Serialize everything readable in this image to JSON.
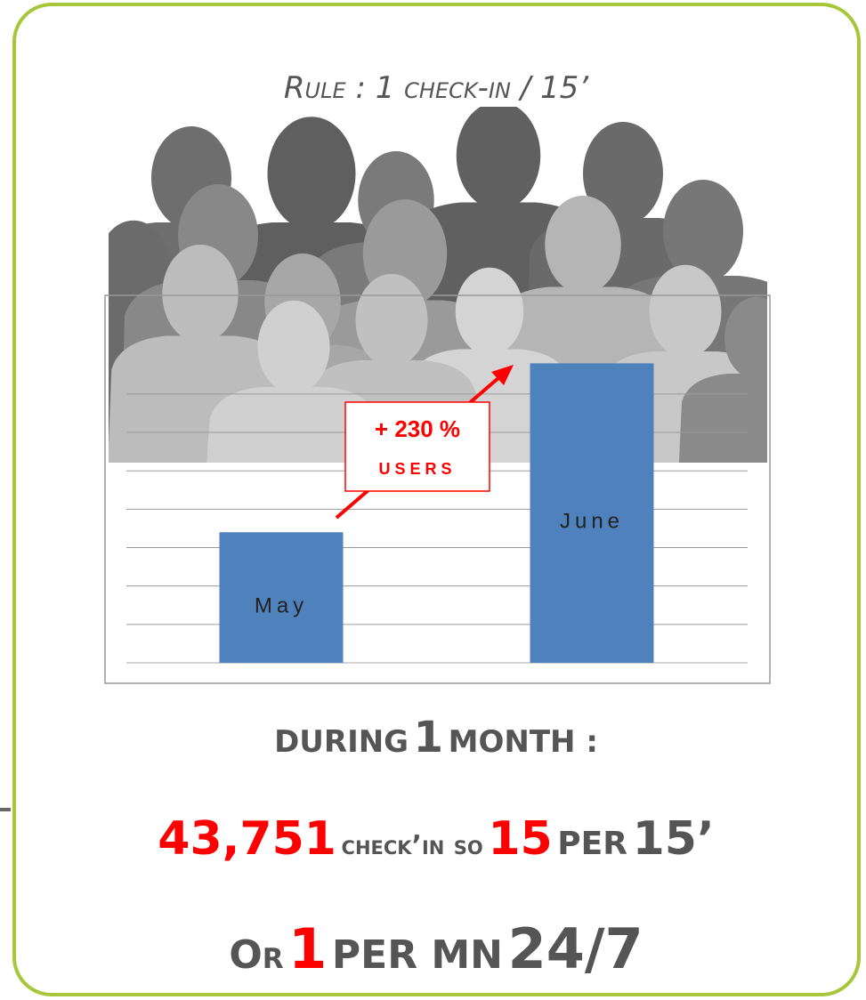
{
  "title": "Rule : 1 check-in / 15’",
  "chart_data": {
    "type": "bar",
    "categories": [
      "May",
      "June"
    ],
    "values": [
      3.4,
      7.8
    ],
    "color": "#4f81bd",
    "ylim": [
      0,
      9.5
    ],
    "grid_lines": [
      1,
      2,
      3,
      4,
      5,
      6,
      7
    ],
    "annotation": [
      "+ 230 %",
      "USERS"
    ],
    "annotation_color": "#ff0000"
  },
  "lines": [
    [
      "DURING",
      "1",
      "MONTH :"
    ],
    [
      "43,751",
      "check’in so",
      "15",
      "PER",
      "15’"
    ],
    [
      "Or",
      "1",
      "PER MN",
      "24/7"
    ]
  ]
}
